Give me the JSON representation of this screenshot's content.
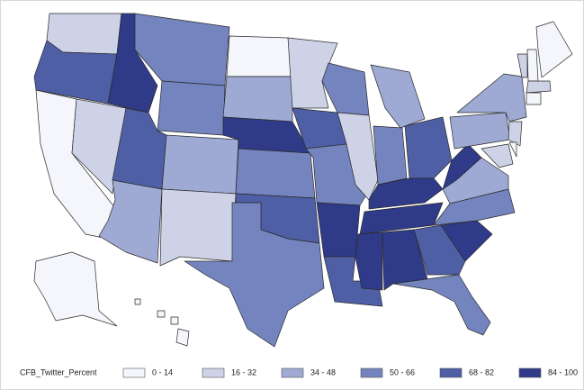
{
  "legend": {
    "title": "CFB_Twitter_Percent",
    "bins": [
      {
        "label": "0 - 14",
        "color": "#f4f6fb"
      },
      {
        "label": "16 - 32",
        "color": "#cdd2e7"
      },
      {
        "label": "34 - 48",
        "color": "#9eaad3"
      },
      {
        "label": "50 - 66",
        "color": "#7484bf"
      },
      {
        "label": "68 - 82",
        "color": "#4f5fa6"
      },
      {
        "label": "84 - 100",
        "color": "#2f3b88"
      }
    ]
  }
}
